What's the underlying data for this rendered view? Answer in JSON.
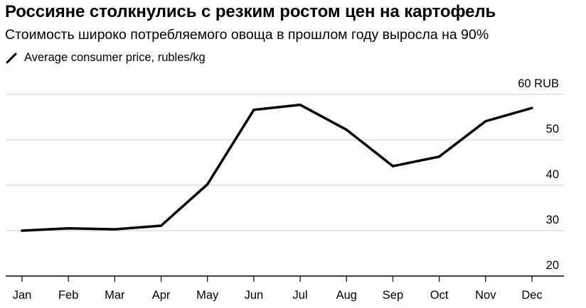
{
  "header": {
    "title": "Россияне столкнулись с резким ростом цен на картофель",
    "subtitle": "Стоимость широко потребляемого овоща в прошлом году выросла на 90%",
    "legend_label": "Average consumer price, rubles/kg"
  },
  "colors": {
    "line": "#000000",
    "gridline": "#dddddd",
    "axis": "#000000"
  },
  "chart_data": {
    "type": "line",
    "title": "Россияне столкнулись с резким ростом цен на картофель",
    "subtitle": "Стоимость широко потребляемого овоща в прошлом году выросла на 90%",
    "xlabel": "",
    "ylabel": "RUB",
    "categories": [
      "Jan",
      "Feb",
      "Mar",
      "Apr",
      "May",
      "Jun",
      "Jul",
      "Aug",
      "Sep",
      "Oct",
      "Nov",
      "Dec"
    ],
    "series": [
      {
        "name": "Average consumer price, rubles/kg",
        "values": [
          30.0,
          30.5,
          30.3,
          31.1,
          40.2,
          56.6,
          57.7,
          52.2,
          44.2,
          46.3,
          54.1,
          57.0
        ]
      }
    ],
    "ylim": [
      20,
      60
    ],
    "yticks": [
      20,
      30,
      40,
      50,
      60
    ],
    "ytick_labels": [
      "20",
      "30",
      "40",
      "50",
      "60 RUB"
    ],
    "grid": true,
    "y_axis_position": "right",
    "legend_position": "top-left"
  }
}
